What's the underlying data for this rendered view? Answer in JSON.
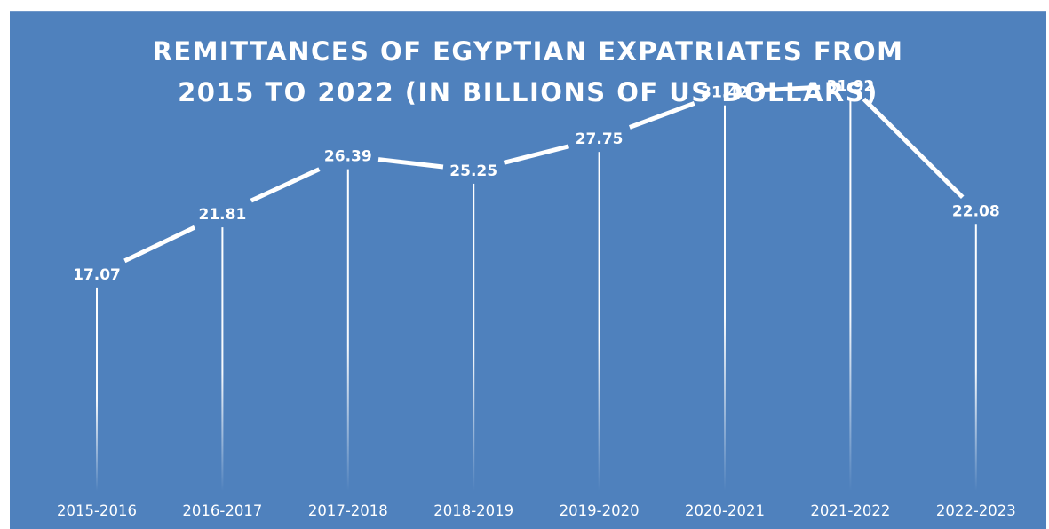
{
  "chart_data": {
    "type": "line",
    "title_lines": [
      "REMITTANCES OF EGYPTIAN EXPATRIATES FROM",
      "2015 TO 2022 (IN BILLIONS OF US DOLLARS)"
    ],
    "categories": [
      "2015-2016",
      "2016-2017",
      "2017-2018",
      "2018-2019",
      "2019-2020",
      "2020-2021",
      "2021-2022",
      "2022-2023"
    ],
    "values": [
      17.07,
      21.81,
      26.39,
      25.25,
      27.75,
      31.42,
      31.92,
      22.08
    ],
    "value_labels": [
      "17.07",
      "21.81",
      "26.39",
      "25.25",
      "27.75",
      "31.42",
      "31.92",
      "22.08"
    ],
    "ylim": [
      0,
      36
    ],
    "grid": false,
    "legend": "none",
    "drop_lines": true,
    "colors": {
      "background": "#4f81bd",
      "line": "#ffffff",
      "text": "#ffffff"
    }
  }
}
